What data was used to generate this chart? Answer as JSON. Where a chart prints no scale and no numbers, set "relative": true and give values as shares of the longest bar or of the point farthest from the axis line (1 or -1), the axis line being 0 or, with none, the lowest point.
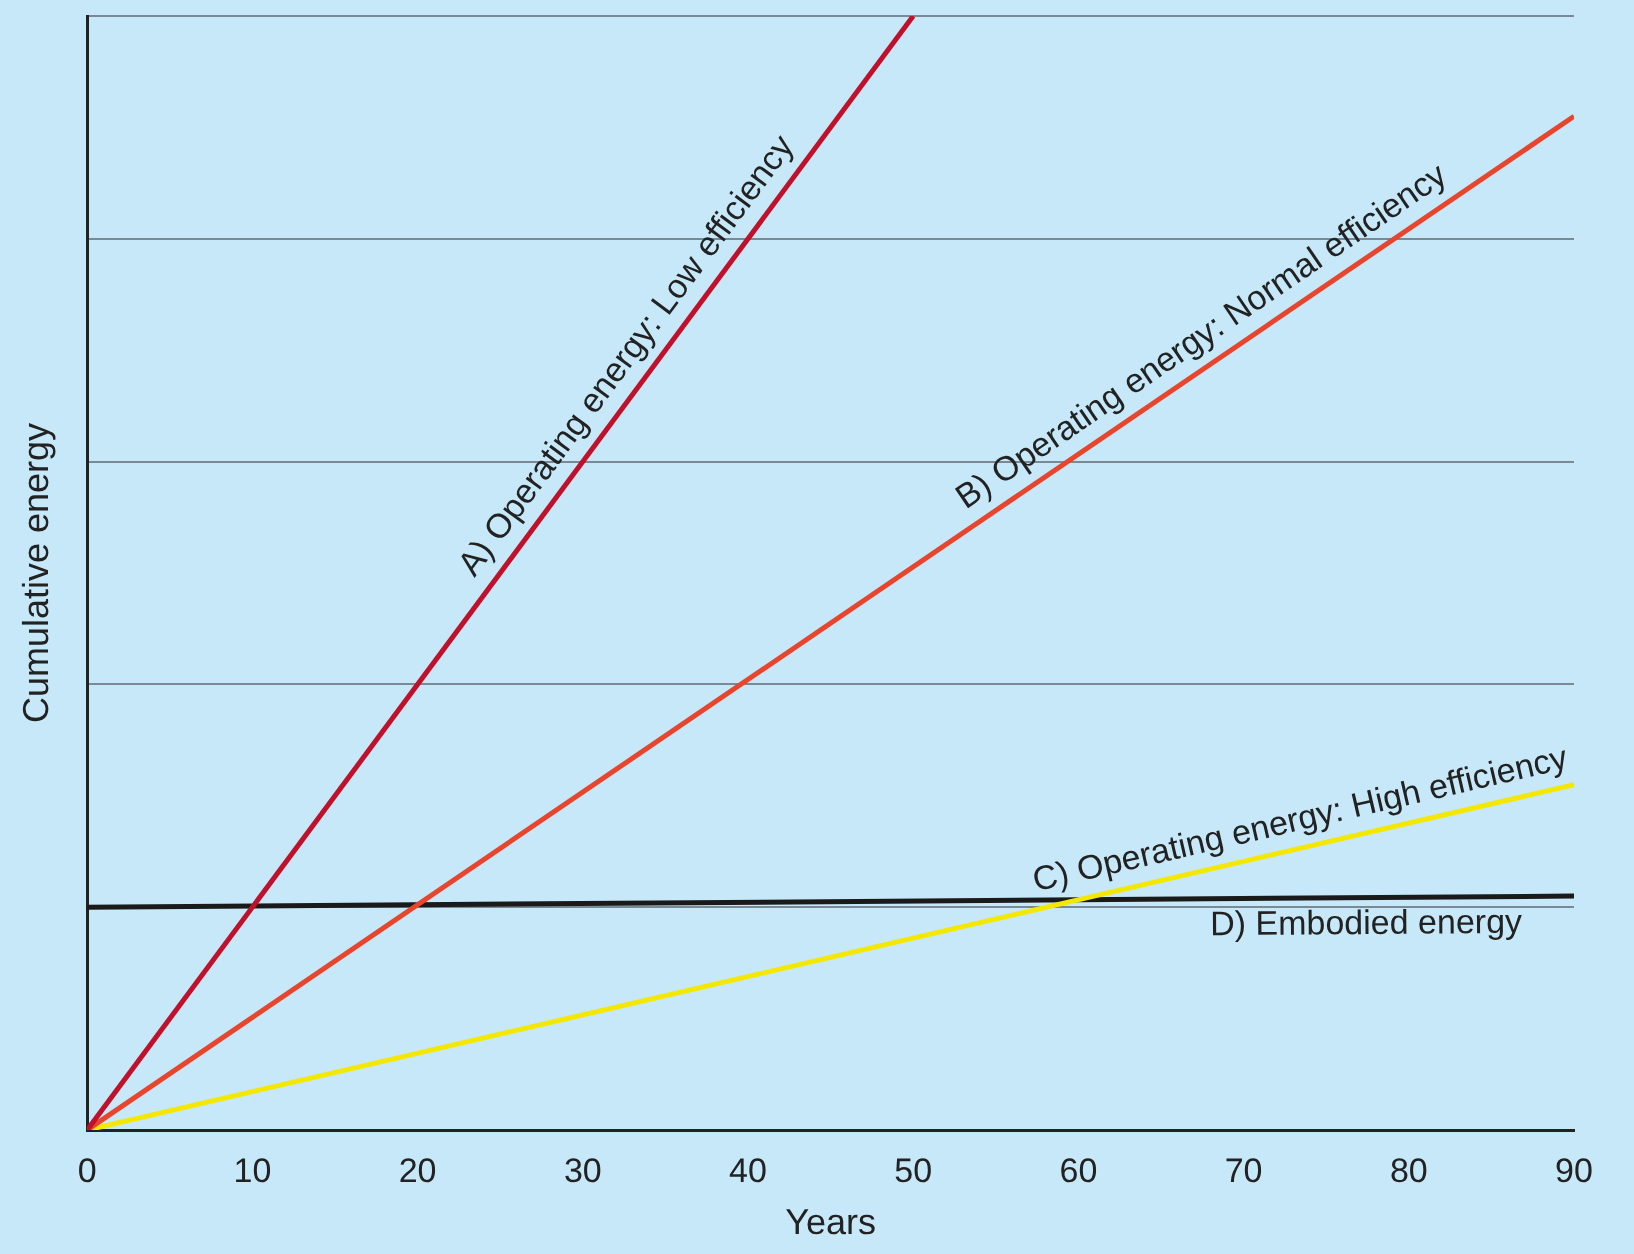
{
  "chart_data": {
    "type": "line",
    "xlabel": "Years",
    "ylabel": "Cumulative energy",
    "relative": true,
    "xlim": [
      0,
      90
    ],
    "xticks": [
      0,
      10,
      20,
      30,
      40,
      50,
      60,
      70,
      80,
      90
    ],
    "grid": "y",
    "legend": false,
    "marker": "none",
    "line_style": "solid",
    "series": [
      {
        "name": "A) Operating energy: Low efficiency",
        "color": "#c0102a",
        "x": [
          0,
          50
        ],
        "values": [
          0,
          1
        ]
      },
      {
        "name": "B) Operating energy: Normal efficiency",
        "color": "#e8452c",
        "x": [
          0,
          90
        ],
        "values": [
          0,
          0.91
        ]
      },
      {
        "name": "C) Operating energy: High efficiency",
        "color": "#f5e800",
        "x": [
          0,
          90
        ],
        "values": [
          0,
          0.31
        ]
      },
      {
        "name": "D) Embodied energy",
        "color": "#1a1a1a",
        "x": [
          0,
          90
        ],
        "values": [
          0.2,
          0.21
        ]
      }
    ]
  }
}
